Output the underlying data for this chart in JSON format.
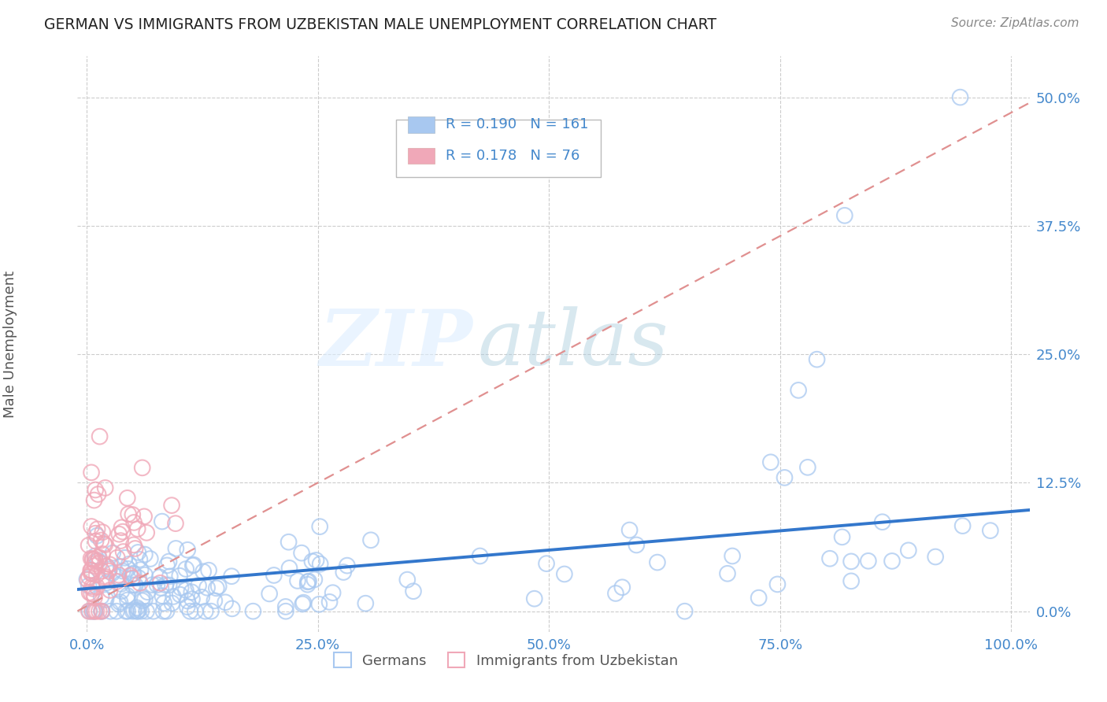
{
  "title": "GERMAN VS IMMIGRANTS FROM UZBEKISTAN MALE UNEMPLOYMENT CORRELATION CHART",
  "source": "Source: ZipAtlas.com",
  "ylabel": "Male Unemployment",
  "xlabel": "",
  "background_color": "#ffffff",
  "plot_bg_color": "#ffffff",
  "watermark_zip": "ZIP",
  "watermark_atlas": "atlas",
  "german_color": "#a8c8f0",
  "uzbek_color": "#f0a8b8",
  "german_line_color": "#3377cc",
  "uzbek_line_color": "#e09090",
  "title_color": "#222222",
  "axis_label_color": "#555555",
  "tick_color": "#4488cc",
  "R_german": 0.19,
  "N_german": 161,
  "R_uzbek": 0.178,
  "N_uzbek": 76,
  "xlim": [
    -0.01,
    1.02
  ],
  "ylim": [
    -0.02,
    0.54
  ],
  "yticks": [
    0.0,
    0.125,
    0.25,
    0.375,
    0.5
  ],
  "ytick_labels": [
    "0.0%",
    "12.5%",
    "25.0%",
    "37.5%",
    "50.0%"
  ],
  "xticks": [
    0.0,
    0.25,
    0.5,
    0.75,
    1.0
  ],
  "xtick_labels": [
    "0.0%",
    "25.0%",
    "50.0%",
    "75.0%",
    "100.0%"
  ],
  "grid_color": "#cccccc",
  "legend_label1": "Germans",
  "legend_label2": "Immigrants from Uzbekistan",
  "legend_r1": "R = 0.190",
  "legend_n1": "N = 161",
  "legend_r2": "R = 0.178",
  "legend_n2": "N = 76"
}
